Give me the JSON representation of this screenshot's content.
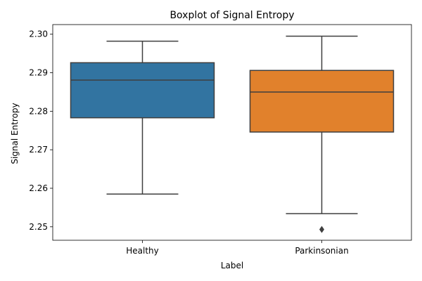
{
  "chart_data": {
    "type": "boxplot",
    "title": "Boxplot of Signal Entropy",
    "xlabel": "Label",
    "ylabel": "Signal Entropy",
    "categories": [
      "Healthy",
      "Parkinsonian"
    ],
    "ylim": [
      2.2465,
      2.3025
    ],
    "yticks": [
      2.25,
      2.26,
      2.27,
      2.28,
      2.29,
      2.3
    ],
    "ytick_labels": [
      "2.25",
      "2.26",
      "2.27",
      "2.28",
      "2.29",
      "2.30"
    ],
    "grid": false,
    "boxes": [
      {
        "category": "Healthy",
        "color": "#3274a1",
        "whisker_low": 2.2585,
        "q1": 2.2783,
        "median": 2.2881,
        "q3": 2.2926,
        "whisker_high": 2.2982,
        "outliers": []
      },
      {
        "category": "Parkinsonian",
        "color": "#e1812c",
        "whisker_low": 2.2534,
        "q1": 2.2746,
        "median": 2.285,
        "q3": 2.2906,
        "whisker_high": 2.2995,
        "outliers": [
          2.2493
        ]
      }
    ]
  }
}
